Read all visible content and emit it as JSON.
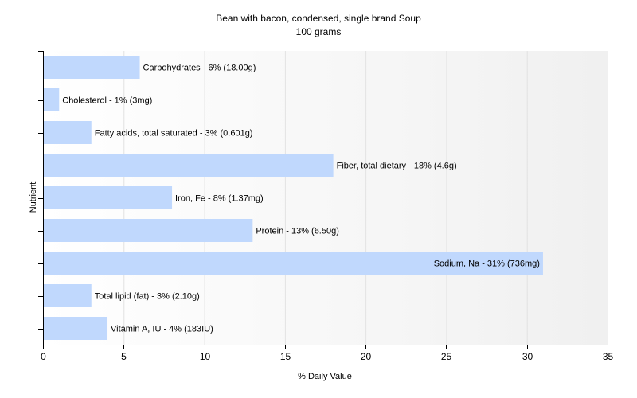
{
  "chart_data": {
    "type": "bar",
    "orientation": "horizontal",
    "title": "Bean with bacon, condensed, single brand Soup",
    "subtitle": "100 grams",
    "xlabel": "% Daily Value",
    "ylabel": "Nutrient",
    "xlim": [
      0,
      35
    ],
    "xticks": [
      0,
      5,
      10,
      15,
      20,
      25,
      30,
      35
    ],
    "grid": true,
    "bar_color": "#c0d8fd",
    "categories": [
      "Carbohydrates",
      "Cholesterol",
      "Fatty acids, total saturated",
      "Fiber, total dietary",
      "Iron, Fe",
      "Protein",
      "Sodium, Na",
      "Total lipid (fat)",
      "Vitamin A, IU"
    ],
    "values": [
      6,
      1,
      3,
      18,
      8,
      13,
      31,
      3,
      4
    ],
    "labels": [
      "Carbohydrates - 6% (18.00g)",
      "Cholesterol - 1% (3mg)",
      "Fatty acids, total saturated - 3% (0.601g)",
      "Fiber, total dietary - 18% (4.6g)",
      "Iron, Fe - 8% (1.37mg)",
      "Protein - 13% (6.50g)",
      "Sodium, Na - 31% (736mg)",
      "Total lipid (fat) - 3% (2.10g)",
      "Vitamin A, IU - 4% (183IU)"
    ]
  }
}
